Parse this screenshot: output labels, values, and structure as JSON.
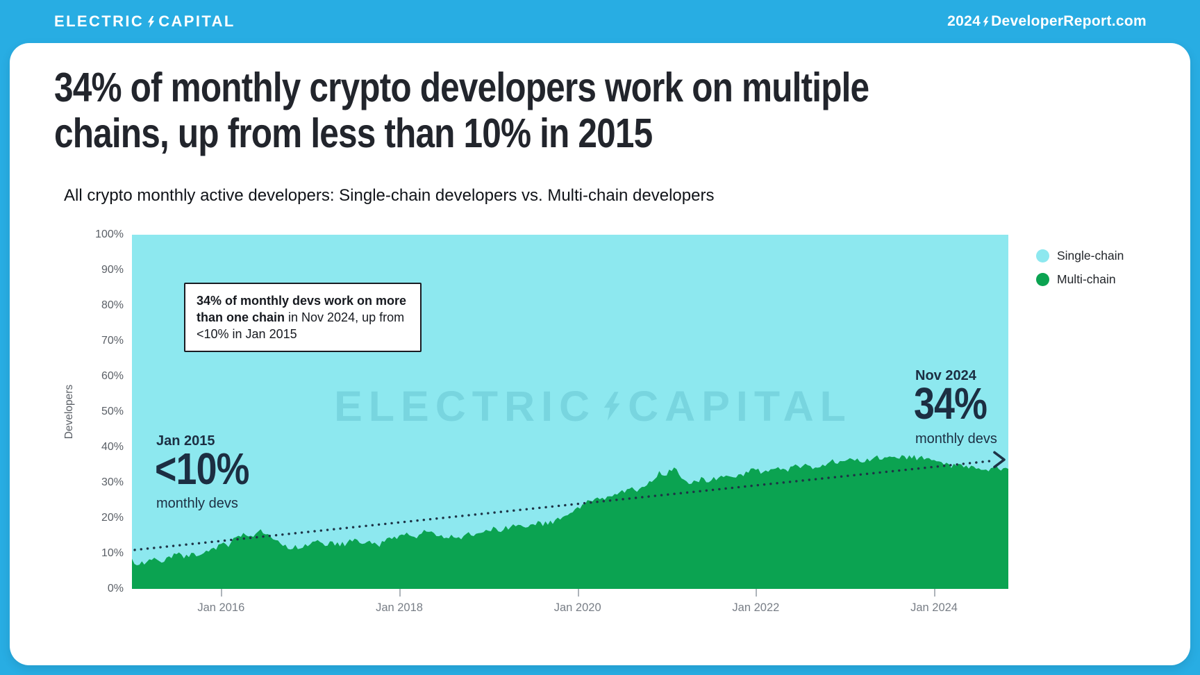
{
  "header": {
    "brand_left_1": "ELECTRIC",
    "brand_left_2": "CAPITAL",
    "brand_right_prefix": "2024",
    "brand_right_suffix": "DeveloperReport.com"
  },
  "title": {
    "line1": "34% of monthly crypto developers work on multiple",
    "line2": "chains, up from less than 10% in 2015",
    "full": "34% of monthly crypto developers work on multiple chains, up from less than 10% in 2015"
  },
  "subtitle": "All crypto monthly active developers: Single-chain developers vs. Multi-chain developers",
  "watermark": {
    "word1": "ELECTRIC",
    "word2": "CAPITAL"
  },
  "legend": [
    {
      "label": "Single-chain",
      "color": "#8DE8EF"
    },
    {
      "label": "Multi-chain",
      "color": "#0BA351"
    }
  ],
  "callout_box": {
    "segments": [
      {
        "text": "34% of monthly devs work on more than one chain",
        "bold": true
      },
      {
        "text": " in Nov 2024, up from <10% in Jan 2015",
        "bold": false
      }
    ]
  },
  "chart_data": {
    "type": "area",
    "stacked_percent": true,
    "title": "All crypto monthly active developers: Single-chain developers vs. Multi-chain developers",
    "xlabel": "",
    "ylabel": "Developers",
    "ylim": [
      0,
      100
    ],
    "grid": false,
    "legend_position": "top-right",
    "y_ticks": [
      "0%",
      "10%",
      "20%",
      "30%",
      "40%",
      "50%",
      "60%",
      "70%",
      "80%",
      "90%",
      "100%"
    ],
    "x_ticks": [
      {
        "label": "Jan 2016",
        "month_index": 12
      },
      {
        "label": "Jan 2018",
        "month_index": 36
      },
      {
        "label": "Jan 2020",
        "month_index": 60
      },
      {
        "label": "Jan 2022",
        "month_index": 84
      },
      {
        "label": "Jan 2024",
        "month_index": 108
      }
    ],
    "x_range": {
      "start": "Jan 2015",
      "end": "Nov 2024",
      "interval": "monthly"
    },
    "series": [
      {
        "name": "Single-chain",
        "color": "#8DE8EF",
        "note": "fills remainder of 100% stack above Multi-chain"
      },
      {
        "name": "Multi-chain",
        "color": "#0BA351",
        "monthly_percent": [
          8.5,
          6.8,
          7.6,
          8.8,
          7.4,
          9.2,
          9.8,
          8.6,
          10.2,
          9.4,
          10.8,
          11.6,
          12.7,
          11.8,
          14.6,
          15.8,
          15.0,
          16.2,
          15.4,
          14.0,
          12.8,
          11.3,
          12.4,
          11.6,
          12.6,
          13.8,
          12.1,
          13.4,
          12.0,
          13.1,
          14.2,
          12.7,
          13.6,
          12.5,
          13.3,
          14.1,
          15.1,
          15.9,
          14.7,
          15.6,
          16.1,
          14.9,
          14.3,
          15.3,
          14.6,
          15.5,
          14.9,
          15.8,
          16.4,
          17.1,
          16.6,
          17.5,
          18.1,
          17.3,
          18.3,
          18.9,
          18.1,
          19.5,
          20.3,
          21.4,
          23.1,
          23.9,
          24.7,
          25.3,
          26.1,
          26.8,
          27.9,
          28.3,
          27.4,
          28.8,
          30.2,
          33.3,
          32.0,
          34.3,
          31.2,
          29.6,
          30.4,
          31.2,
          30.6,
          31.4,
          32.0,
          31.5,
          32.4,
          32.8,
          33.6,
          33.0,
          33.8,
          34.4,
          33.7,
          34.6,
          34.1,
          34.9,
          34.3,
          35.1,
          35.9,
          35.3,
          36.1,
          36.6,
          35.9,
          36.8,
          37.2,
          36.5,
          37.4,
          36.9,
          37.5,
          36.8,
          37.1,
          36.9,
          36.4,
          35.8,
          35.2,
          34.7,
          34.3,
          34.8,
          34.1,
          33.7,
          34.3,
          33.4,
          33.9
        ]
      }
    ],
    "trend_line": {
      "style": "dotted",
      "color": "#1E3346",
      "arrow": true,
      "start_percent": 11,
      "end_percent": 36.5,
      "label_start": {
        "title": "Jan 2015",
        "value": "<10%",
        "caption": "monthly devs"
      },
      "label_end": {
        "title": "Nov 2024",
        "value": "34%",
        "caption": "monthly devs"
      }
    }
  }
}
